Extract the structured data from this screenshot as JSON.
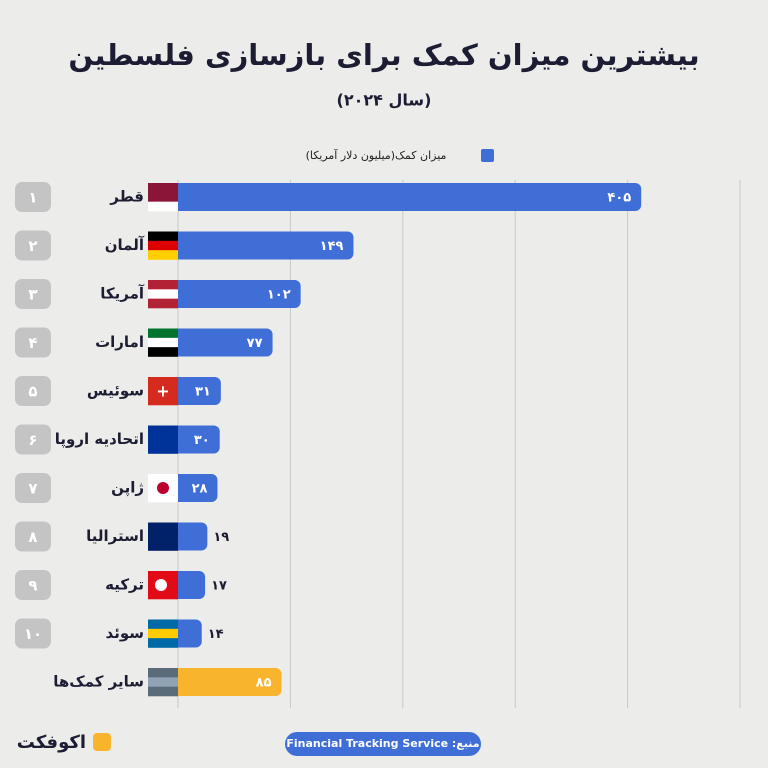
{
  "chart_data": {
    "type": "bar",
    "orientation": "horizontal",
    "title": "بیشترین میزان کمک برای بازسازی فلسطین",
    "subtitle": "(سال ۲۰۲۴)",
    "categories": [
      "قطر",
      "آلمان",
      "آمریکا",
      "امارات",
      "سوئیس",
      "اتحادیه اروپا",
      "ژاپن",
      "استرالیا",
      "ترکیه",
      "سوئد",
      "سایر کمک‌ها"
    ],
    "ranks": [
      "۱",
      "۲",
      "۳",
      "۴",
      "۵",
      "۶",
      "۷",
      "۸",
      "۹",
      "۱۰"
    ],
    "series": [
      {
        "name": "میزان کمک(میلیون دلار آمریکا)",
        "color": "#3e6ed6",
        "values": [
          405,
          149,
          102,
          77,
          31,
          30,
          28,
          19,
          17,
          14,
          85
        ],
        "value_labels": [
          "۴۰۵",
          "۱۴۹",
          "۱۰۲",
          "۷۷",
          "۳۱",
          "۳۰",
          "۲۸",
          "۱۹",
          "۱۷",
          "۱۴",
          "۸۵"
        ],
        "colors": [
          "#3e6ed6",
          "#3e6ed6",
          "#3e6ed6",
          "#3e6ed6",
          "#3e6ed6",
          "#3e6ed6",
          "#3e6ed6",
          "#3e6ed6",
          "#3e6ed6",
          "#3e6ed6",
          "#f8b42c"
        ]
      }
    ],
    "xlim": [
      0,
      500
    ],
    "xticks": [
      0,
      100,
      200,
      300,
      400,
      500
    ],
    "grid": true,
    "source": "منبع: Financial Tracking Service",
    "brand": "اکوفکت"
  }
}
